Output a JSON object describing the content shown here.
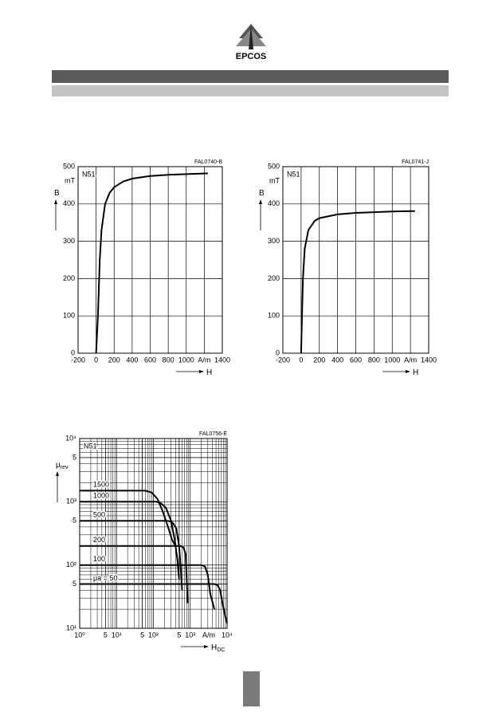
{
  "header": {
    "logo": "EPCOS"
  },
  "chart_data": [
    {
      "type": "line",
      "code": "FAL0740-B",
      "material": "N51",
      "ylabel": "B",
      "yunit": "mT",
      "xlabel": "H",
      "xlim": [
        -200,
        1400
      ],
      "ylim": [
        0,
        500
      ],
      "xticks": [
        -200,
        0,
        200,
        400,
        600,
        800,
        1000,
        {
          "value": 1200,
          "label": "A/m"
        },
        1400
      ],
      "yticks": [
        0,
        100,
        200,
        300,
        400,
        500
      ],
      "grid": true,
      "series": [
        {
          "color": "#000000",
          "x": [
            0,
            20,
            40,
            60,
            100,
            150,
            200,
            300,
            400,
            600,
            800,
            1000,
            1240
          ],
          "values": [
            0,
            100,
            250,
            330,
            400,
            430,
            445,
            460,
            468,
            475,
            478,
            480,
            482
          ]
        }
      ]
    },
    {
      "type": "line",
      "code": "FAL0741-J",
      "material": "N51",
      "ylabel": "B",
      "yunit": "mT",
      "xlabel": "H",
      "xlim": [
        -200,
        1400
      ],
      "ylim": [
        0,
        500
      ],
      "xticks": [
        -200,
        0,
        200,
        400,
        600,
        800,
        1000,
        {
          "value": 1200,
          "label": "A/m"
        },
        1400
      ],
      "yticks": [
        0,
        100,
        200,
        300,
        400,
        500
      ],
      "grid": true,
      "series": [
        {
          "color": "#000000",
          "x": [
            0,
            10,
            20,
            40,
            80,
            150,
            200,
            400,
            600,
            800,
            1000,
            1250
          ],
          "values": [
            0,
            100,
            200,
            280,
            330,
            355,
            362,
            372,
            376,
            378,
            380,
            381
          ]
        }
      ]
    },
    {
      "type": "line",
      "log": true,
      "code": "FAL0756-E",
      "material": "N51",
      "ylabel": "μ",
      "ylabel_sub": "rev",
      "xlabel": "H",
      "xlabel_sub": "DC",
      "xunit": "A/m",
      "xlim": [
        1,
        10000
      ],
      "ylim": [
        10,
        10000
      ],
      "xticks": [
        {
          "value": 1,
          "label": "10⁰"
        },
        5,
        {
          "value": 10,
          "label": "10¹"
        },
        {
          "value": 50,
          "label": "5"
        },
        {
          "value": 100,
          "label": "10²"
        },
        {
          "value": 500,
          "label": "5"
        },
        {
          "value": 1000,
          "label": "10³"
        },
        {
          "value": 10000,
          "label": "10⁴"
        }
      ],
      "yticks": [
        {
          "value": 10,
          "label": "10¹"
        },
        {
          "value": 50,
          "label": "5"
        },
        {
          "value": 100,
          "label": "10²"
        },
        {
          "value": 500,
          "label": "5"
        },
        {
          "value": 1000,
          "label": "10³"
        },
        {
          "value": 5000,
          "label": "5"
        },
        {
          "value": 10000,
          "label": "10⁴"
        }
      ],
      "grid": true,
      "series": [
        {
          "name": "1500",
          "color": "#000000",
          "x": [
            1,
            60,
            90,
            130,
            180,
            250,
            320,
            400
          ],
          "values": [
            1500,
            1500,
            1400,
            1100,
            700,
            400,
            250,
            200
          ]
        },
        {
          "name": "1000",
          "color": "#000000",
          "x": [
            1,
            120,
            160,
            220,
            300,
            380,
            450,
            500
          ],
          "values": [
            1000,
            1000,
            950,
            800,
            500,
            250,
            120,
            60
          ]
        },
        {
          "name": "500",
          "color": "#000000",
          "x": [
            1,
            250,
            330,
            420,
            500,
            560,
            600
          ],
          "values": [
            500,
            500,
            470,
            380,
            200,
            80,
            40
          ]
        },
        {
          "name": "200",
          "color": "#000000",
          "x": [
            1,
            550,
            650,
            750,
            800,
            850
          ],
          "values": [
            200,
            200,
            190,
            150,
            60,
            25
          ]
        },
        {
          "name": "100",
          "color": "#000000",
          "x": [
            1,
            2000,
            2500,
            3000,
            3500,
            4500
          ],
          "values": [
            100,
            100,
            95,
            70,
            35,
            20
          ]
        },
        {
          "name": "μa = 50",
          "color": "#000000",
          "x": [
            1,
            4500,
            5500,
            6500,
            7500,
            9000,
            10000
          ],
          "values": [
            50,
            50,
            48,
            40,
            25,
            15,
            12
          ]
        }
      ]
    }
  ]
}
